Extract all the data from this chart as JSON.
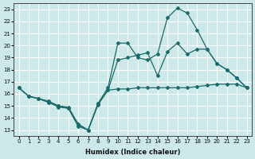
{
  "xlabel": "Humidex (Indice chaleur)",
  "xlim": [
    -0.5,
    23.5
  ],
  "ylim": [
    12.5,
    23.5
  ],
  "yticks": [
    13,
    14,
    15,
    16,
    17,
    18,
    19,
    20,
    21,
    22,
    23
  ],
  "xticks": [
    0,
    1,
    2,
    3,
    4,
    5,
    6,
    7,
    8,
    9,
    10,
    11,
    12,
    13,
    14,
    15,
    16,
    17,
    18,
    19,
    20,
    21,
    22,
    23
  ],
  "background_color": "#cce8e8",
  "grid_color": "#ffffff",
  "line_color": "#1a6b6b",
  "line1_x": [
    0,
    1,
    2,
    3,
    4,
    5,
    6,
    7,
    8,
    9,
    10,
    11,
    12,
    13,
    14,
    15,
    16,
    17,
    18,
    19,
    20,
    21,
    22,
    23
  ],
  "line1_y": [
    16.5,
    15.8,
    15.6,
    15.3,
    14.9,
    14.8,
    13.3,
    13.0,
    15.2,
    16.5,
    20.2,
    20.2,
    19.0,
    18.8,
    19.3,
    22.3,
    23.1,
    22.7,
    21.3,
    19.7,
    18.5,
    18.0,
    17.3,
    16.5
  ],
  "line2_x": [
    0,
    1,
    2,
    3,
    4,
    5,
    6,
    7,
    8,
    9,
    10,
    11,
    12,
    13,
    14,
    15,
    16,
    17,
    18,
    19,
    20,
    21,
    22,
    23
  ],
  "line2_y": [
    16.5,
    15.8,
    15.6,
    15.4,
    15.0,
    14.9,
    13.5,
    13.0,
    15.2,
    16.3,
    18.8,
    19.0,
    19.2,
    19.4,
    17.5,
    19.5,
    20.2,
    19.3,
    19.7,
    19.7,
    18.5,
    18.0,
    17.3,
    16.5
  ],
  "line3_x": [
    0,
    1,
    2,
    3,
    4,
    5,
    6,
    7,
    8,
    9,
    10,
    11,
    12,
    13,
    14,
    15,
    16,
    17,
    18,
    19,
    20,
    21,
    22,
    23
  ],
  "line3_y": [
    16.5,
    15.8,
    15.6,
    15.3,
    15.0,
    14.8,
    13.4,
    13.0,
    15.1,
    16.3,
    16.4,
    16.4,
    16.5,
    16.5,
    16.5,
    16.5,
    16.5,
    16.5,
    16.6,
    16.7,
    16.8,
    16.8,
    16.8,
    16.5
  ]
}
